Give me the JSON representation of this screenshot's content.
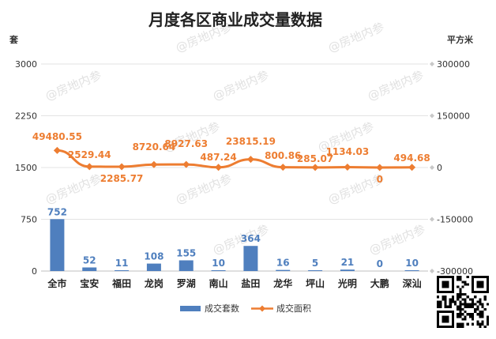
{
  "chart_data": {
    "type": "bar",
    "title": "月度各区商业成交量数据",
    "categories": [
      "全市",
      "宝安",
      "福田",
      "龙岗",
      "罗湖",
      "南山",
      "盐田",
      "龙华",
      "坪山",
      "光明",
      "大鹏",
      "深汕"
    ],
    "y_left": {
      "label": "套",
      "ylim": [
        0,
        3000
      ],
      "ticks": [
        "0",
        "750",
        "1500",
        "2250",
        "3000"
      ]
    },
    "y_right": {
      "label": "平方米",
      "ylim": [
        -300000,
        300000
      ],
      "ticks": [
        "-300000",
        "-150000",
        "0",
        "150000",
        "300000"
      ]
    },
    "series": [
      {
        "name": "成交套数",
        "type": "bar",
        "axis": "left",
        "color": "#4F7FBE",
        "values": [
          752,
          52,
          11,
          108,
          155,
          10,
          364,
          16,
          5,
          21,
          0,
          10
        ],
        "labels": [
          "752",
          "52",
          "11",
          "108",
          "155",
          "10",
          "364",
          "16",
          "5",
          "21",
          "0",
          "10"
        ]
      },
      {
        "name": "成交面积",
        "type": "line",
        "axis": "right",
        "color": "#ED7D31",
        "values": [
          49480.55,
          2529.44,
          2285.77,
          8720.64,
          8927.63,
          487.24,
          23815.19,
          800.86,
          285.07,
          1134.03,
          0,
          494.68
        ],
        "labels": [
          "49480.55",
          "2529.44",
          "2285.77",
          "8720.64",
          "8927.63",
          "487.24",
          "23815.19",
          "800.86",
          "285.07",
          "1134.03",
          "0",
          "494.68"
        ]
      }
    ],
    "grid": true,
    "legend": "bottom"
  },
  "watermark": "@房地内参",
  "qr_icon": "qr-code-icon"
}
